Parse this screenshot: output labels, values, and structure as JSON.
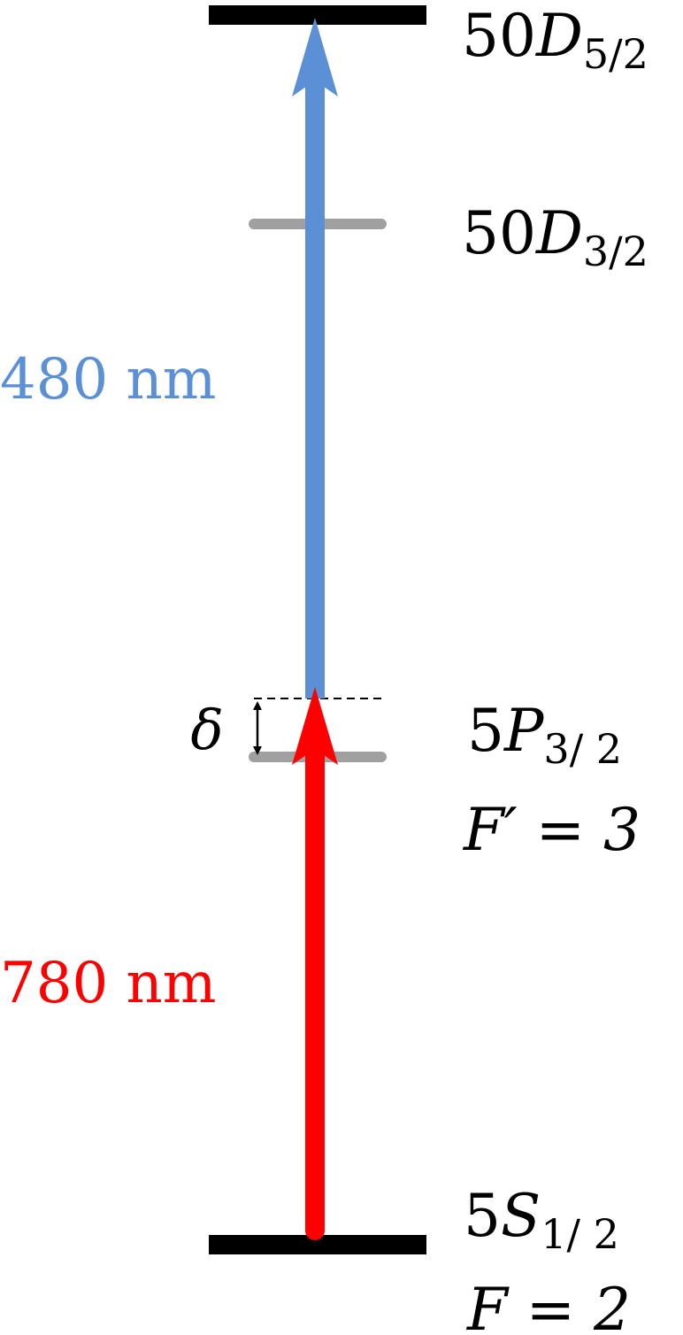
{
  "diagram": {
    "levels": {
      "top": {
        "number": "50",
        "letter": "D",
        "subscript": "5/2",
        "color": "#000000"
      },
      "d32": {
        "number": "50",
        "letter": "D",
        "subscript": "3/2",
        "color": "#A0A0A0"
      },
      "p32": {
        "number": "5",
        "letter": "P",
        "subscript": "3/ 2",
        "f_line": "F′ = 3",
        "color": "#A0A0A0"
      },
      "ground": {
        "number": "5",
        "letter": "S",
        "subscript": "1/ 2",
        "f_line": "F = 2",
        "color": "#000000"
      }
    },
    "beams": {
      "blue": {
        "label": "480 nm",
        "color": "#5B8FD6"
      },
      "red": {
        "label": "780 nm",
        "color": "#FF0000"
      }
    },
    "detuning": {
      "symbol": "δ"
    }
  }
}
